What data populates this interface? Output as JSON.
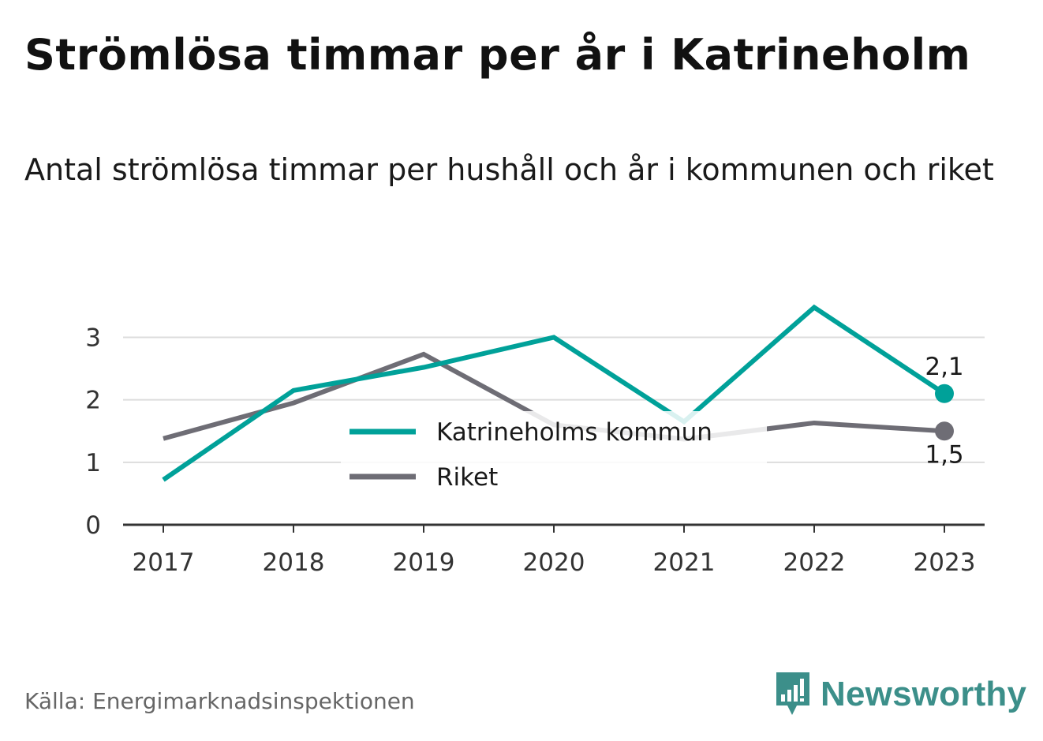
{
  "title": "Strömlösa timmar per år i Katrineholm",
  "subtitle": "Antal strömlösa timmar per hushåll och år i kommunen och riket",
  "source": "Källa: Energimarknadsinspektionen",
  "brand": {
    "name": "Newsworthy",
    "color": "#3c8f8a",
    "icon": "bar-chart-speech-bubble-icon"
  },
  "chart_data": {
    "type": "line",
    "x": [
      "2017",
      "2018",
      "2019",
      "2020",
      "2021",
      "2022",
      "2023"
    ],
    "yticks": [
      "0",
      "1",
      "2",
      "3"
    ],
    "ylim": [
      0,
      3.6
    ],
    "grid": true,
    "legend_position": "center",
    "series": [
      {
        "name": "Katrineholms kommun",
        "color": "#00a199",
        "values": [
          0.72,
          2.15,
          2.52,
          3.0,
          1.65,
          3.48,
          2.1
        ],
        "end_label": "2,1"
      },
      {
        "name": "Riket",
        "color": "#6e6d75",
        "values": [
          1.38,
          1.95,
          2.73,
          1.6,
          1.37,
          1.63,
          1.5
        ],
        "end_label": "1,5"
      }
    ]
  }
}
